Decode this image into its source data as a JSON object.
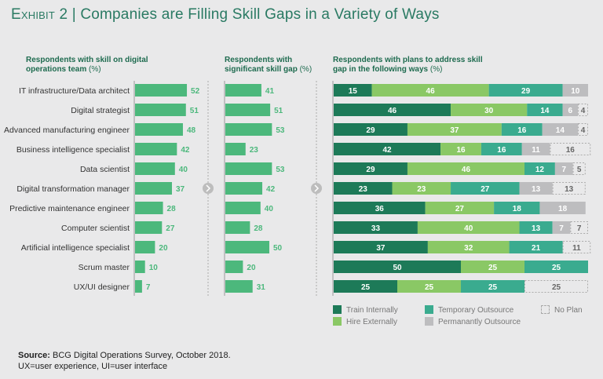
{
  "title": {
    "exhibit": "Exhibit 2",
    "separator": "|",
    "text": "Companies are Filling Skill Gaps in a Variety of Ways"
  },
  "headers": {
    "panel1": {
      "text": "Respondents with skill on digital operations team",
      "unit": "(%)"
    },
    "panel2": {
      "text": "Respondents with significant skill gap",
      "unit": "(%)"
    },
    "panel3": {
      "text": "Respondents with plans to address skill gap in the following ways",
      "unit": "(%)"
    }
  },
  "colors": {
    "bar": "#4cb87c",
    "train": "#1d7a58",
    "hire": "#8ac865",
    "temp": "#3aab8f",
    "perm": "#bdbdbf",
    "noplan_border": "#aaaaaa",
    "title": "#2a7a63",
    "arrow": "#bdbdbd"
  },
  "chart_data": [
    {
      "type": "bar",
      "orientation": "horizontal",
      "title": "Respondents with skill on digital operations team (%)",
      "categories": [
        "IT infrastructure/Data architect",
        "Digital strategist",
        "Advanced manufacturing engineer",
        "Business intelligence specialist",
        "Data scientist",
        "Digital transformation manager",
        "Predictive maintenance engineer",
        "Computer scientist",
        "Artificial intelligence specialist",
        "Scrum master",
        "UX/UI designer"
      ],
      "values": [
        52,
        51,
        48,
        42,
        40,
        37,
        28,
        27,
        20,
        10,
        7
      ]
    },
    {
      "type": "bar",
      "orientation": "horizontal",
      "title": "Respondents with significant skill gap (%)",
      "categories": [
        "IT infrastructure/Data architect",
        "Digital strategist",
        "Advanced manufacturing engineer",
        "Business intelligence specialist",
        "Data scientist",
        "Digital transformation manager",
        "Predictive maintenance engineer",
        "Computer scientist",
        "Artificial intelligence specialist",
        "Scrum master",
        "UX/UI designer"
      ],
      "values": [
        41,
        51,
        53,
        23,
        53,
        42,
        40,
        28,
        50,
        20,
        31
      ]
    },
    {
      "type": "bar",
      "orientation": "horizontal",
      "stacked": true,
      "title": "Respondents with plans to address skill gap in the following ways (%)",
      "categories": [
        "IT infrastructure/Data architect",
        "Digital strategist",
        "Advanced manufacturing engineer",
        "Business intelligence specialist",
        "Data scientist",
        "Digital transformation manager",
        "Predictive maintenance engineer",
        "Computer scientist",
        "Artificial intelligence specialist",
        "Scrum master",
        "UX/UI designer"
      ],
      "series": [
        {
          "name": "Train Internally",
          "key": "train",
          "values": [
            15,
            46,
            29,
            42,
            29,
            23,
            36,
            33,
            37,
            50,
            25
          ]
        },
        {
          "name": "Hire Externally",
          "key": "hire",
          "values": [
            46,
            30,
            37,
            16,
            46,
            23,
            27,
            40,
            32,
            25,
            25
          ]
        },
        {
          "name": "Temporary Outsource",
          "key": "temp",
          "values": [
            29,
            14,
            16,
            16,
            12,
            27,
            18,
            13,
            21,
            25,
            25
          ]
        },
        {
          "name": "Permanantly Outsource",
          "key": "perm",
          "values": [
            10,
            6,
            14,
            11,
            7,
            13,
            18,
            7,
            0,
            0,
            0
          ]
        },
        {
          "name": "No Plan",
          "key": "noplan",
          "values": [
            0,
            4,
            4,
            16,
            5,
            13,
            0,
            7,
            11,
            0,
            25
          ]
        }
      ],
      "legend": "bottom",
      "xlim": [
        0,
        100
      ]
    }
  ],
  "legend": [
    {
      "key": "train",
      "label": "Train Internally"
    },
    {
      "key": "hire",
      "label": "Hire Externally"
    },
    {
      "key": "temp",
      "label": "Temporary Outsource"
    },
    {
      "key": "perm",
      "label": "Permanantly Outsource"
    },
    {
      "key": "noplan",
      "label": "No Plan"
    }
  ],
  "source": {
    "label": "Source:",
    "text": "BCG Digital Operations Survey, October 2018.",
    "note": "UX=user experience, UI=user interface"
  }
}
